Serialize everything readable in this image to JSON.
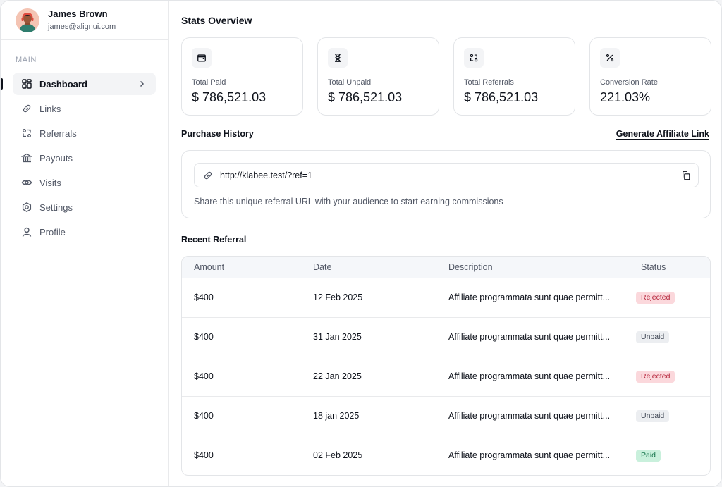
{
  "user": {
    "name": "James Brown",
    "email": "james@alignui.com",
    "avatar_icon": "user-avatar"
  },
  "sidebar": {
    "section_label": "MAIN",
    "items": [
      {
        "label": "Dashboard",
        "icon": "dashboard-icon",
        "active": true
      },
      {
        "label": "Links",
        "icon": "link-icon"
      },
      {
        "label": "Referrals",
        "icon": "referrals-icon"
      },
      {
        "label": "Payouts",
        "icon": "bank-icon"
      },
      {
        "label": "Visits",
        "icon": "eye-icon"
      },
      {
        "label": "Settings",
        "icon": "gear-icon"
      },
      {
        "label": "Profile",
        "icon": "user-icon"
      }
    ]
  },
  "stats": {
    "title": "Stats Overview",
    "cards": [
      {
        "label": "Total Paid",
        "value": "$ 786,521.03",
        "icon": "wallet-icon"
      },
      {
        "label": "Total Unpaid",
        "value": "$ 786,521.03",
        "icon": "hourglass-icon"
      },
      {
        "label": "Total Referrals",
        "value": "$ 786,521.03",
        "icon": "referrals-icon"
      },
      {
        "label": "Conversion Rate",
        "value": "221.03%",
        "icon": "percent-icon"
      }
    ]
  },
  "purchase_history": {
    "title": "Purchase History",
    "generate_link_label": "Generate Affiliate Link",
    "url": "http://klabee.test/?ref=1",
    "help_text": "Share this unique referral URL with your audience to start earning commissions"
  },
  "recent_referral": {
    "title": "Recent Referral",
    "columns": [
      "Amount",
      "Date",
      "Description",
      "Status"
    ],
    "rows": [
      {
        "amount": "$400",
        "date": "12 Feb 2025",
        "description": "Affiliate programmata sunt quae permitt...",
        "status": "Rejected"
      },
      {
        "amount": "$400",
        "date": "31 Jan 2025",
        "description": "Affiliate programmata sunt quae permitt...",
        "status": "Unpaid"
      },
      {
        "amount": "$400",
        "date": "22 Jan 2025",
        "description": "Affiliate programmata sunt quae permitt...",
        "status": "Rejected"
      },
      {
        "amount": "$400",
        "date": "18 jan 2025",
        "description": "Affiliate programmata sunt quae permitt...",
        "status": "Unpaid"
      },
      {
        "amount": "$400",
        "date": "02 Feb 2025",
        "description": "Affiliate programmata sunt quae permitt...",
        "status": "Paid"
      }
    ]
  },
  "status_colors": {
    "Rejected": {
      "bg": "#fbd8dc",
      "fg": "#b42339"
    },
    "Unpaid": {
      "bg": "#eceef1",
      "fg": "#3d4452"
    },
    "Paid": {
      "bg": "#c9f0dc",
      "fg": "#14734a"
    }
  }
}
